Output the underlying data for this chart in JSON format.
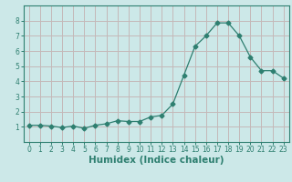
{
  "x": [
    0,
    1,
    2,
    3,
    4,
    5,
    6,
    7,
    8,
    9,
    10,
    11,
    12,
    13,
    14,
    15,
    16,
    17,
    18,
    19,
    20,
    21,
    22,
    23
  ],
  "y": [
    1.1,
    1.1,
    1.05,
    0.95,
    1.05,
    0.9,
    1.1,
    1.2,
    1.4,
    1.35,
    1.35,
    1.65,
    1.75,
    2.5,
    4.4,
    6.3,
    7.0,
    7.85,
    7.85,
    7.0,
    5.6,
    4.7,
    4.7,
    4.2
  ],
  "line_color": "#2e7f70",
  "marker": "D",
  "marker_size": 2.5,
  "bg_color": "#cce8e8",
  "grid_color": "#c4b8b8",
  "xlabel": "Humidex (Indice chaleur)",
  "ylabel": "",
  "xlim": [
    -0.5,
    23.5
  ],
  "ylim": [
    0,
    9
  ],
  "yticks": [
    1,
    2,
    3,
    4,
    5,
    6,
    7,
    8
  ],
  "xticks": [
    0,
    1,
    2,
    3,
    4,
    5,
    6,
    7,
    8,
    9,
    10,
    11,
    12,
    13,
    14,
    15,
    16,
    17,
    18,
    19,
    20,
    21,
    22,
    23
  ],
  "tick_label_size": 5.5,
  "xlabel_size": 7.5,
  "label_color": "#2e7f70",
  "tick_color": "#2e7f70",
  "spine_color": "#2e7f70"
}
